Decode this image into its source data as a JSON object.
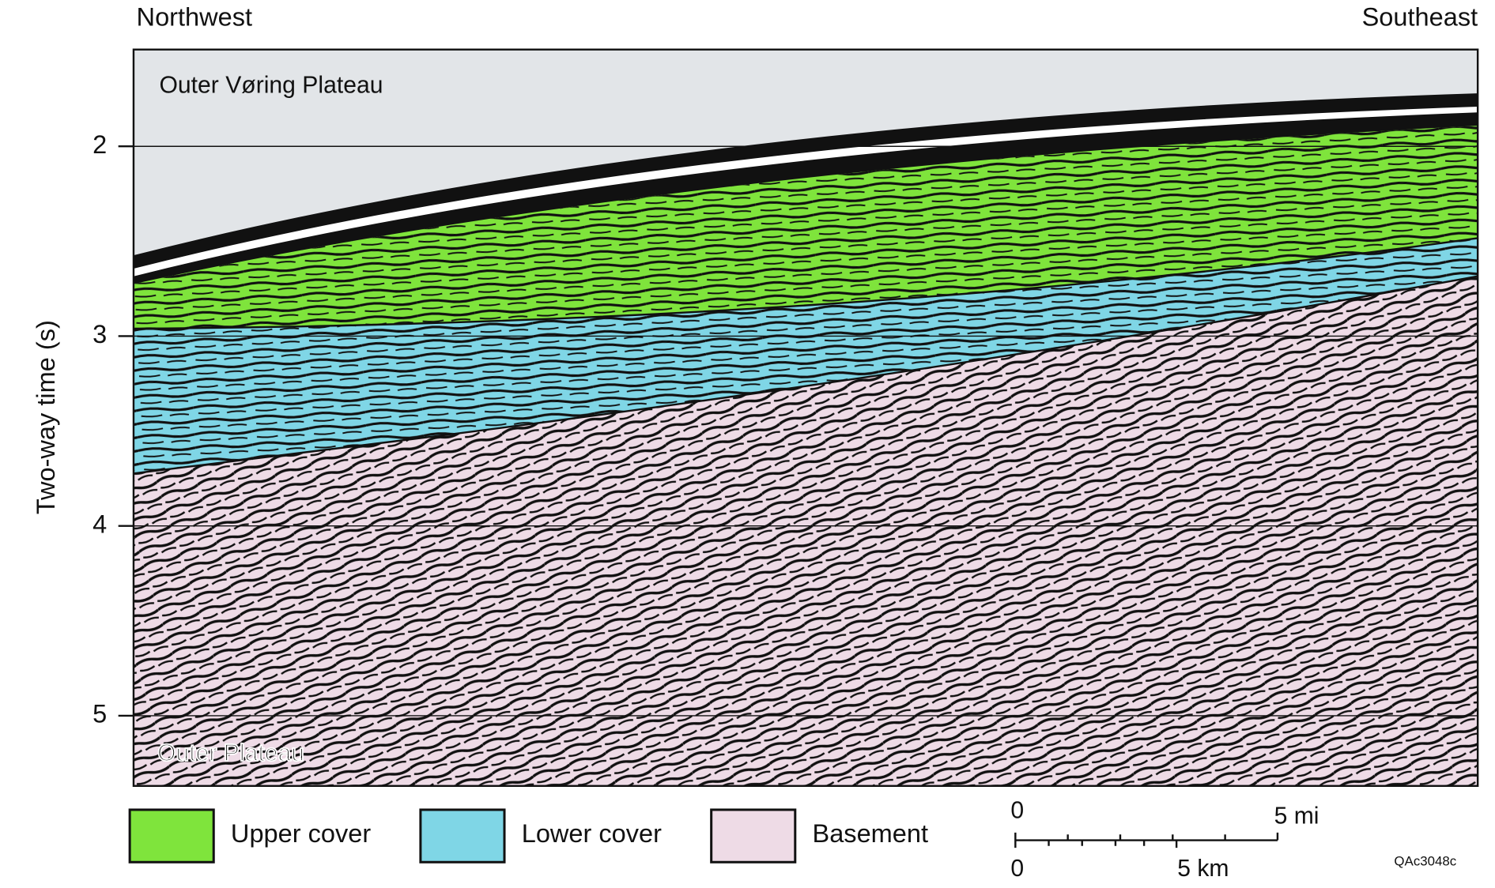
{
  "header": {
    "left": "Northwest",
    "right": "Southeast"
  },
  "section": {
    "title": "Outer Vøring Plateau",
    "bottom_label": "Outer Plateau"
  },
  "axis": {
    "label": "Two-way time (s)",
    "ticks": [
      2,
      3,
      4,
      5
    ],
    "range": [
      1.49,
      5.37
    ]
  },
  "legend": [
    {
      "label": "Upper cover",
      "color": "#7fe43c"
    },
    {
      "label": "Lower cover",
      "color": "#7fd6e6"
    },
    {
      "label": "Basement",
      "color": "#eedbe6"
    }
  ],
  "scale_bar": {
    "mi_labels": [
      "0",
      "5 mi"
    ],
    "km_labels": [
      "0",
      "5 km"
    ]
  },
  "figure_id": "QAc3048c"
}
